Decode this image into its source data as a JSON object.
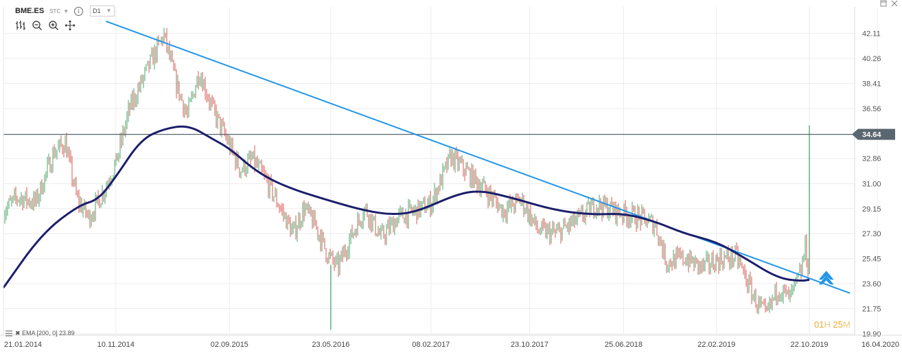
{
  "header": {
    "symbol": "BME.ES",
    "type": "STC",
    "info_icon": "info-icon",
    "timeframe": "D1"
  },
  "toolbar": {
    "tools": [
      "bar-type-icon",
      "zoom-out-icon",
      "zoom-in-icon",
      "crosshair-icon"
    ]
  },
  "legend": {
    "label": "✖ EMA [200, 0] 23.89"
  },
  "timer": {
    "hours": "01",
    "h_unit": "H",
    "minutes": "25",
    "m_unit": "M"
  },
  "colors": {
    "up": "#3a9a5b",
    "down": "#d8453f",
    "ema": "#1b1e6b",
    "trendline": "#2196e8",
    "level": "#56646e",
    "price_tag": "#5a6670",
    "arrow": "#2196e8",
    "grid": "#ececec"
  },
  "chart_data": {
    "type": "line",
    "y_ticks": [
      "42.11",
      "40.26",
      "38.41",
      "36.56",
      "34.64",
      "32.86",
      "31.00",
      "29.15",
      "27.30",
      "25.45",
      "23.60",
      "21.75",
      "19.90"
    ],
    "x_ticks": [
      "21.01.2014",
      "10.11.2014",
      "02.09.2015",
      "23.05.2016",
      "08.02.2017",
      "23.10.2017",
      "25.06.2018",
      "22.02.2019",
      "22.10.2019",
      "16.04.2020"
    ],
    "ylim": [
      19.9,
      42.11
    ],
    "grid": true,
    "current_price": 34.64,
    "series": [
      {
        "name": "EMA [200, 0]",
        "value_label": "23.89",
        "points": [
          [
            "2014-01-21",
            23.3
          ],
          [
            "2014-05-01",
            27.3
          ],
          [
            "2014-08-05",
            29.4
          ],
          [
            "2014-09-25",
            29.8
          ],
          [
            "2014-11-10",
            31.5
          ],
          [
            "2015-01-15",
            34.3
          ],
          [
            "2015-03-20",
            35.1
          ],
          [
            "2015-05-20",
            35.3
          ],
          [
            "2015-07-20",
            34.3
          ],
          [
            "2015-09-02",
            33.6
          ],
          [
            "2015-11-15",
            31.8
          ],
          [
            "2016-02-01",
            30.7
          ],
          [
            "2016-05-23",
            29.7
          ],
          [
            "2016-08-20",
            29.0
          ],
          [
            "2016-10-28",
            28.7
          ],
          [
            "2017-01-01",
            28.9
          ],
          [
            "2017-04-15",
            30.2
          ],
          [
            "2017-06-15",
            30.5
          ],
          [
            "2017-09-01",
            30.0
          ],
          [
            "2018-01-01",
            29.0
          ],
          [
            "2018-04-10",
            28.7
          ],
          [
            "2018-06-25",
            28.8
          ],
          [
            "2018-09-15",
            28.2
          ],
          [
            "2018-12-01",
            27.3
          ],
          [
            "2019-02-22",
            26.7
          ],
          [
            "2019-05-01",
            25.6
          ],
          [
            "2019-08-01",
            24.0
          ],
          [
            "2019-10-01",
            23.8
          ],
          [
            "2019-10-22",
            23.89
          ]
        ]
      },
      {
        "name": "trendline",
        "points": [
          [
            "2014-10-15",
            43.0
          ],
          [
            "2020-02-05",
            22.9
          ]
        ]
      },
      {
        "name": "level",
        "points": [
          [
            "2013-12-01",
            34.64
          ],
          [
            "2020-04-20",
            34.64
          ]
        ]
      }
    ],
    "price_path": [
      [
        "2014-01-21",
        29.0
      ],
      [
        "2014-03-01",
        30.0
      ],
      [
        "2014-04-15",
        29.6
      ],
      [
        "2014-06-01",
        33.3
      ],
      [
        "2014-07-01",
        34.0
      ],
      [
        "2014-08-01",
        29.8
      ],
      [
        "2014-09-01",
        28.5
      ],
      [
        "2014-10-01",
        30.0
      ],
      [
        "2014-11-10",
        32.5
      ],
      [
        "2014-12-15",
        36.5
      ],
      [
        "2015-02-01",
        39.5
      ],
      [
        "2015-03-15",
        42.0
      ],
      [
        "2015-04-15",
        38.5
      ],
      [
        "2015-05-15",
        36.0
      ],
      [
        "2015-06-15",
        39.3
      ],
      [
        "2015-07-20",
        36.5
      ],
      [
        "2015-09-02",
        33.8
      ],
      [
        "2015-10-01",
        32.0
      ],
      [
        "2015-11-01",
        32.8
      ],
      [
        "2015-12-15",
        30.8
      ],
      [
        "2016-02-15",
        27.3
      ],
      [
        "2016-03-15",
        29.2
      ],
      [
        "2016-04-15",
        27.8
      ],
      [
        "2016-05-15",
        25.7
      ],
      [
        "2016-06-10",
        24.8
      ],
      [
        "2016-07-10",
        26.8
      ],
      [
        "2016-08-20",
        29.2
      ],
      [
        "2016-10-01",
        27.0
      ],
      [
        "2016-11-15",
        28.5
      ],
      [
        "2017-01-01",
        29.0
      ],
      [
        "2017-02-08",
        29.5
      ],
      [
        "2017-04-01",
        33.0
      ],
      [
        "2017-05-15",
        31.8
      ],
      [
        "2017-07-01",
        30.5
      ],
      [
        "2017-08-15",
        29.0
      ],
      [
        "2017-10-01",
        29.8
      ],
      [
        "2017-11-15",
        27.5
      ],
      [
        "2018-01-01",
        27.3
      ],
      [
        "2018-03-01",
        28.4
      ],
      [
        "2018-04-15",
        29.5
      ],
      [
        "2018-06-01",
        29.0
      ],
      [
        "2018-08-01",
        28.5
      ],
      [
        "2018-09-15",
        28.0
      ],
      [
        "2018-10-15",
        25.2
      ],
      [
        "2018-12-01",
        25.5
      ],
      [
        "2019-01-15",
        24.8
      ],
      [
        "2019-03-01",
        25.4
      ],
      [
        "2019-04-15",
        25.6
      ],
      [
        "2019-06-01",
        22.5
      ],
      [
        "2019-07-01",
        21.2
      ],
      [
        "2019-08-01",
        23.3
      ],
      [
        "2019-09-01",
        22.5
      ],
      [
        "2019-10-01",
        24.5
      ],
      [
        "2019-10-12",
        26.5
      ],
      [
        "2019-10-19",
        24.4
      ]
    ],
    "spikes": [
      {
        "date": "2016-05-23",
        "low": 20.2
      },
      {
        "date": "2019-10-22",
        "high": 35.3
      }
    ]
  }
}
